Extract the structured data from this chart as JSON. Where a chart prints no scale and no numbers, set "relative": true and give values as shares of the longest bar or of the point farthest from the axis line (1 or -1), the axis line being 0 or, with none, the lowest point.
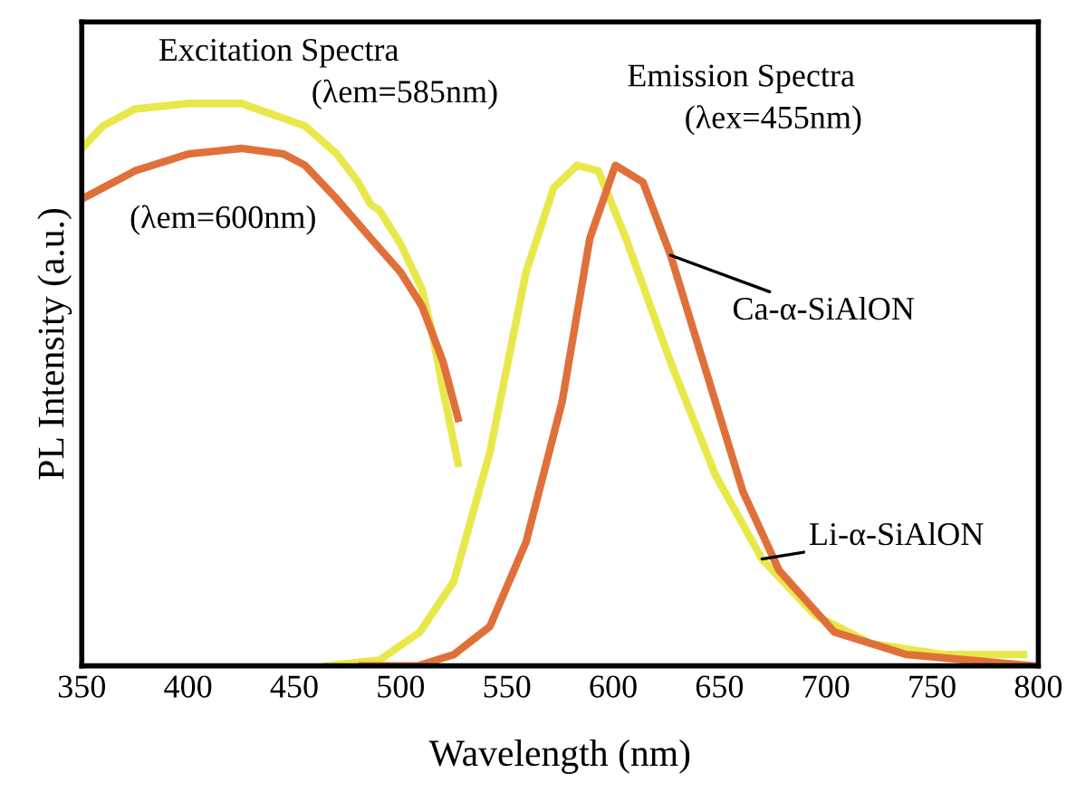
{
  "chart_data": {
    "type": "line",
    "relative": true,
    "xlabel": "Wavelength (nm)",
    "ylabel": "PL Intensity (a.u.)",
    "xlim": [
      350,
      800
    ],
    "xticks": [
      350,
      400,
      450,
      500,
      550,
      600,
      650,
      700,
      750,
      800
    ],
    "grid": false,
    "legend": false,
    "marker": "none",
    "line_style": "solid",
    "annotations": [
      "Excitation Spectra",
      "Emission Spectra",
      "(λex=455nm)"
    ],
    "series": [
      {
        "name": "(λem=585nm)",
        "color": "#e8e84a",
        "x": [
          350,
          360,
          375,
          400,
          425,
          440,
          455,
          470,
          480,
          486,
          490,
          500,
          510,
          515,
          520,
          527
        ],
        "values": [
          0.92,
          0.96,
          0.99,
          1.0,
          1.0,
          0.98,
          0.96,
          0.91,
          0.86,
          0.82,
          0.81,
          0.75,
          0.67,
          0.59,
          0.49,
          0.36
        ]
      },
      {
        "name": "(λem=600nm)",
        "color": "#e0703a",
        "x": [
          350,
          360,
          375,
          400,
          425,
          445,
          455,
          470,
          486,
          500,
          510,
          520,
          527
        ],
        "values": [
          0.83,
          0.85,
          0.88,
          0.91,
          0.92,
          0.91,
          0.89,
          0.83,
          0.76,
          0.7,
          0.64,
          0.54,
          0.44
        ]
      },
      {
        "name": "Li-α-SiAlON",
        "color": "#e8e84a",
        "x": [
          465,
          490,
          509,
          525,
          542,
          559,
          572,
          583,
          593,
          606,
          627,
          648,
          670,
          695,
          721,
          755,
          793
        ],
        "values": [
          0.0,
          0.01,
          0.06,
          0.15,
          0.38,
          0.7,
          0.85,
          0.89,
          0.88,
          0.76,
          0.54,
          0.34,
          0.19,
          0.09,
          0.04,
          0.02,
          0.02
        ]
      },
      {
        "name": "Ca-α-SiAlON",
        "color": "#e0703a",
        "x": [
          482,
          508,
          525,
          542,
          559,
          576,
          589,
          601,
          614,
          627,
          644,
          661,
          678,
          704,
          738,
          797
        ],
        "values": [
          0.0,
          0.0,
          0.02,
          0.07,
          0.22,
          0.47,
          0.76,
          0.89,
          0.86,
          0.73,
          0.52,
          0.31,
          0.17,
          0.06,
          0.02,
          0.0
        ]
      }
    ]
  }
}
